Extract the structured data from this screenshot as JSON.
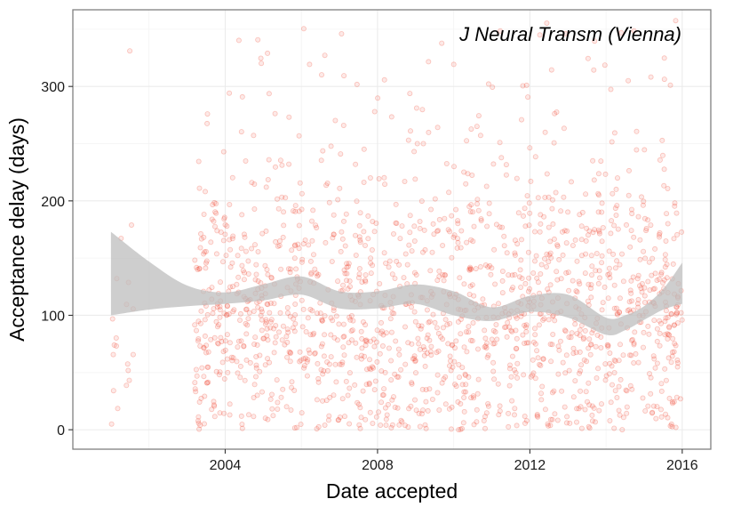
{
  "chart_data": {
    "type": "scatter",
    "title": "J Neural Transm (Vienna)",
    "xlabel": "Date accepted",
    "ylabel": "Acceptance delay (days)",
    "x_ticks": [
      "2004",
      "2008",
      "2012",
      "2016"
    ],
    "y_ticks": [
      "0",
      "100",
      "200",
      "300"
    ],
    "xlim": [
      2000.0,
      2016.75
    ],
    "ylim": [
      -17,
      367
    ],
    "grid": true,
    "point_color": "#f03b20",
    "ribbon_color": "#bdbdbd",
    "smooth": {
      "x": [
        2001.0,
        2002.0,
        2003.0,
        2004.0,
        2005.0,
        2006.0,
        2007.0,
        2008.0,
        2009.0,
        2010.0,
        2011.0,
        2012.0,
        2013.0,
        2014.0,
        2014.5,
        2015.0,
        2015.5,
        2016.0
      ],
      "lower": [
        100,
        105,
        108,
        110,
        113,
        118,
        106,
        106,
        110,
        100,
        95,
        103,
        98,
        83,
        87,
        96,
        105,
        110
      ],
      "upper": [
        173,
        147,
        126,
        120,
        127,
        134,
        121,
        121,
        127,
        121,
        107,
        117,
        118,
        98,
        100,
        108,
        123,
        146
      ]
    },
    "points": {
      "x_range": [
        2001.0,
        2016.0
      ],
      "y_range": [
        0,
        360
      ],
      "count": 1650
    }
  }
}
